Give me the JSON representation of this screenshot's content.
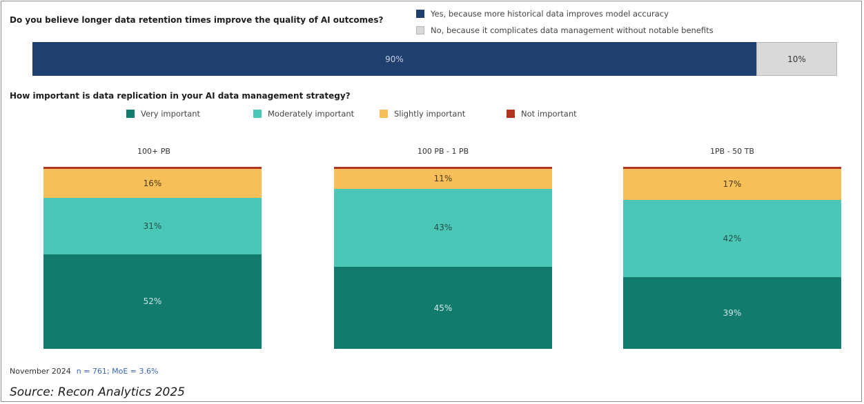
{
  "chart_data": [
    {
      "type": "bar",
      "orientation": "horizontal-stacked",
      "title": "Do you believe longer data retention times improve the quality of AI outcomes?",
      "series": [
        {
          "name": "Yes, because more historical data improves model accuracy",
          "value": 90,
          "label": "90%",
          "color": "#1f3f6e"
        },
        {
          "name": "No, because it complicates data management without notable benefits",
          "value": 10,
          "label": "10%",
          "color": "#d9d9d9"
        }
      ]
    },
    {
      "type": "bar",
      "orientation": "vertical-stacked-100",
      "title": "How important is data replication in your AI data management strategy?",
      "categories": [
        "100+ PB",
        "100 PB - 1 PB",
        "1PB - 50 TB"
      ],
      "series": [
        {
          "name": "Very important",
          "color": "#137a6e",
          "values": [
            52,
            45,
            39
          ],
          "labels": [
            "52%",
            "45%",
            "39%"
          ]
        },
        {
          "name": "Moderately important",
          "color": "#4cc6b6",
          "values": [
            31,
            43,
            42
          ],
          "labels": [
            "31%",
            "43%",
            "42%"
          ]
        },
        {
          "name": "Slightly important",
          "color": "#f7bf5a",
          "values": [
            16,
            11,
            17
          ],
          "labels": [
            "16%",
            "11%",
            "17%"
          ]
        },
        {
          "name": "Not important",
          "color": "#b2341f",
          "values": [
            1,
            1,
            1
          ],
          "labels": [
            "",
            "",
            ""
          ]
        }
      ]
    }
  ],
  "footer": {
    "date": "November 2024",
    "sample": "n = 761; MoE = 3.6%",
    "source": "Source: Recon Analytics 2025"
  }
}
